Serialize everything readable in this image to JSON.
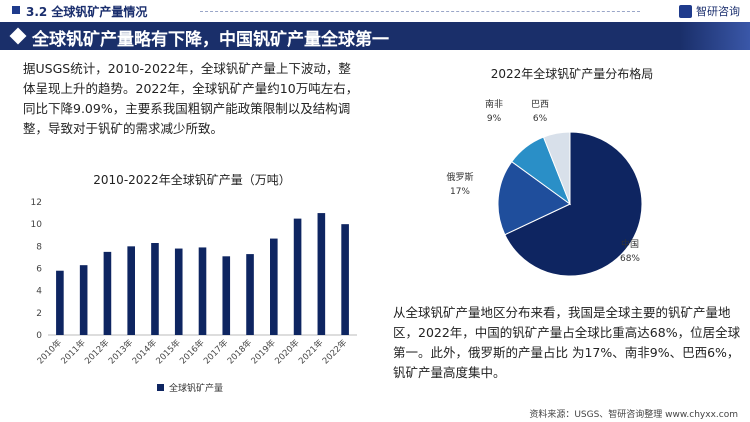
{
  "header": {
    "section_title": "3.2 全球钒矿产量情况",
    "logo_text": "智研咨询",
    "banner_title": "全球钒矿产量略有下降，中国钒矿产量全球第一"
  },
  "left_text": "据USGS统计，2010-2022年，全球钒矿产量上下波动，整体呈现上升的趋势。2022年，全球钒矿产量约10万吨左右，同比下降9.09%，主要系我国粗钢产能政策限制以及结构调整，导致对于钒矿的需求减少所致。",
  "right_text": "从全球钒矿产量地区分布来看，我国是全球主要的钒矿产量地区，2022年，中国的钒矿产量占全球比重高达68%，位居全球第一。此外，俄罗斯的产量占比 为17%、南非9%、巴西6%，钒矿产量高度集中。",
  "source_text": "资料来源：USGS、智研咨询整理   www.chyxx.com",
  "colors": {
    "navy": "#0e2561",
    "accent": "#1a2f6a",
    "mid_blue": "#1f4e9c",
    "teal": "#2a8fc7",
    "light": "#d8e0ea"
  },
  "chart_data": [
    {
      "type": "bar",
      "title": "2010-2022年全球钒矿产量（万吨）",
      "categories": [
        "2010年",
        "2011年",
        "2012年",
        "2013年",
        "2014年",
        "2015年",
        "2016年",
        "2017年",
        "2018年",
        "2019年",
        "2020年",
        "2021年",
        "2022年"
      ],
      "series": [
        {
          "name": "全球钒矿产量",
          "values": [
            5.8,
            6.3,
            7.5,
            8.0,
            8.3,
            7.8,
            7.9,
            7.1,
            7.3,
            8.7,
            10.5,
            11.0,
            10.0
          ]
        }
      ],
      "ylim": [
        0,
        12
      ],
      "yticks": [
        0,
        2,
        4,
        6,
        8,
        10,
        12
      ],
      "legend": "bottom",
      "grid": false
    },
    {
      "type": "pie",
      "title": "2022年全球钒矿产量分布格局",
      "slices": [
        {
          "label": "中国",
          "value": 68,
          "pct": "68%",
          "color": "#0e2561"
        },
        {
          "label": "俄罗斯",
          "value": 17,
          "pct": "17%",
          "color": "#1f4e9c"
        },
        {
          "label": "南非",
          "value": 9,
          "pct": "9%",
          "color": "#2a8fc7"
        },
        {
          "label": "巴西",
          "value": 6,
          "pct": "6%",
          "color": "#d8e0ea"
        }
      ]
    }
  ]
}
